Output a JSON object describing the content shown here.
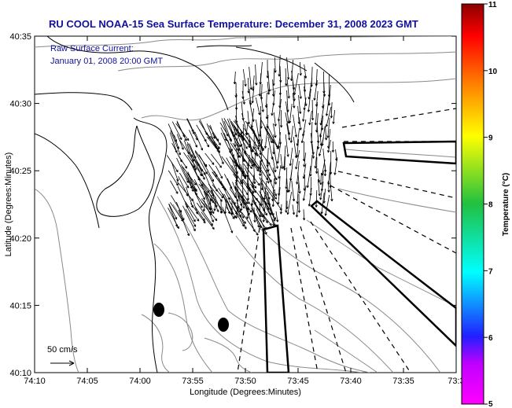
{
  "title": "RU COOL  NOAA-15  Sea Surface Temperature:  December 31, 2008 2023 GMT",
  "annotation": {
    "line1": "Raw Surface Current:",
    "line2": "January 01, 2008 20:00 GMT"
  },
  "scale_label": "50 cm/s",
  "x_axis": {
    "label": "Longitude (Degrees:Minutes)",
    "ticks": [
      "74:10",
      "74:05",
      "74:00",
      "73:55",
      "73:50",
      "73:45",
      "73:40",
      "73:35",
      "73:3"
    ]
  },
  "y_axis": {
    "label": "Latitude (Degrees:Minutes)",
    "ticks": [
      "40:35",
      "40:30",
      "40:25",
      "40:20",
      "40:15",
      "40:10"
    ]
  },
  "colorbar": {
    "label": "Temperature (°C)",
    "ticks": [
      "11",
      "10",
      "9",
      "8",
      "7",
      "6",
      "5"
    ],
    "min": 5,
    "max": 11
  },
  "colors": {
    "title": "#1010a0",
    "land_contour": "#000000",
    "bathymetry": "#8a8a8a"
  }
}
